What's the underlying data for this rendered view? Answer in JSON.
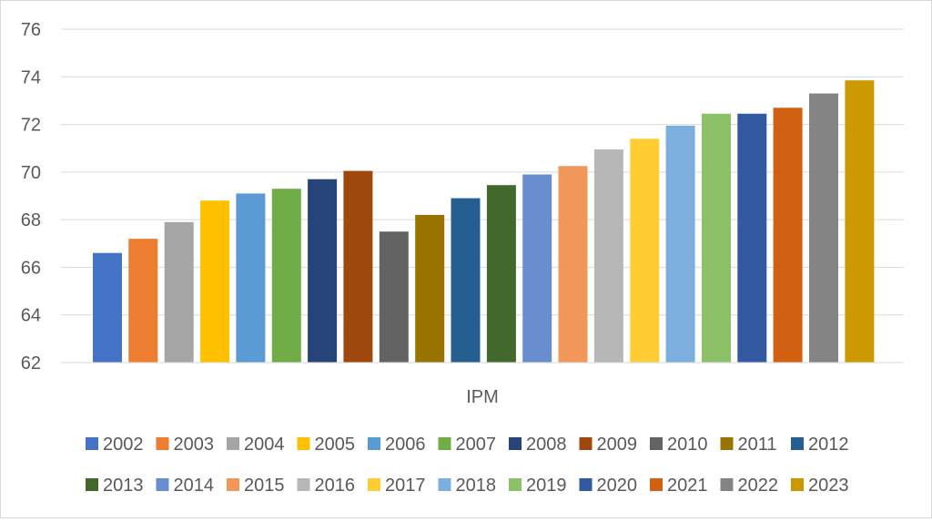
{
  "chart_data": {
    "type": "bar",
    "categories": [
      "IPM"
    ],
    "xlabel": "IPM",
    "ylabel": "",
    "title": "",
    "ylim": [
      62,
      76
    ],
    "yticks": [
      62,
      64,
      66,
      68,
      70,
      72,
      74,
      76
    ],
    "grid": true,
    "legend_position": "bottom",
    "series": [
      {
        "name": "2002",
        "values": [
          66.6
        ],
        "color": "#4472C4"
      },
      {
        "name": "2003",
        "values": [
          67.2
        ],
        "color": "#ED7D31"
      },
      {
        "name": "2004",
        "values": [
          67.9
        ],
        "color": "#A5A5A5"
      },
      {
        "name": "2005",
        "values": [
          68.8
        ],
        "color": "#FFC000"
      },
      {
        "name": "2006",
        "values": [
          69.1
        ],
        "color": "#5B9BD5"
      },
      {
        "name": "2007",
        "values": [
          69.3
        ],
        "color": "#70AD47"
      },
      {
        "name": "2008",
        "values": [
          69.7
        ],
        "color": "#264478"
      },
      {
        "name": "2009",
        "values": [
          70.05
        ],
        "color": "#9E480E"
      },
      {
        "name": "2010",
        "values": [
          67.5
        ],
        "color": "#636363"
      },
      {
        "name": "2011",
        "values": [
          68.2
        ],
        "color": "#997300"
      },
      {
        "name": "2012",
        "values": [
          68.9
        ],
        "color": "#255E91"
      },
      {
        "name": "2013",
        "values": [
          69.45
        ],
        "color": "#43682B"
      },
      {
        "name": "2014",
        "values": [
          69.9
        ],
        "color": "#698ED0"
      },
      {
        "name": "2015",
        "values": [
          70.25
        ],
        "color": "#F1975A"
      },
      {
        "name": "2016",
        "values": [
          70.95
        ],
        "color": "#B7B7B7"
      },
      {
        "name": "2017",
        "values": [
          71.4
        ],
        "color": "#FFCD33"
      },
      {
        "name": "2018",
        "values": [
          71.95
        ],
        "color": "#7CAFDD"
      },
      {
        "name": "2019",
        "values": [
          72.45
        ],
        "color": "#8CC168"
      },
      {
        "name": "2020",
        "values": [
          72.45
        ],
        "color": "#335AA1"
      },
      {
        "name": "2021",
        "values": [
          72.7
        ],
        "color": "#D26012"
      },
      {
        "name": "2022",
        "values": [
          73.3
        ],
        "color": "#848484"
      },
      {
        "name": "2023",
        "values": [
          73.85
        ],
        "color": "#CC9A00"
      }
    ]
  }
}
